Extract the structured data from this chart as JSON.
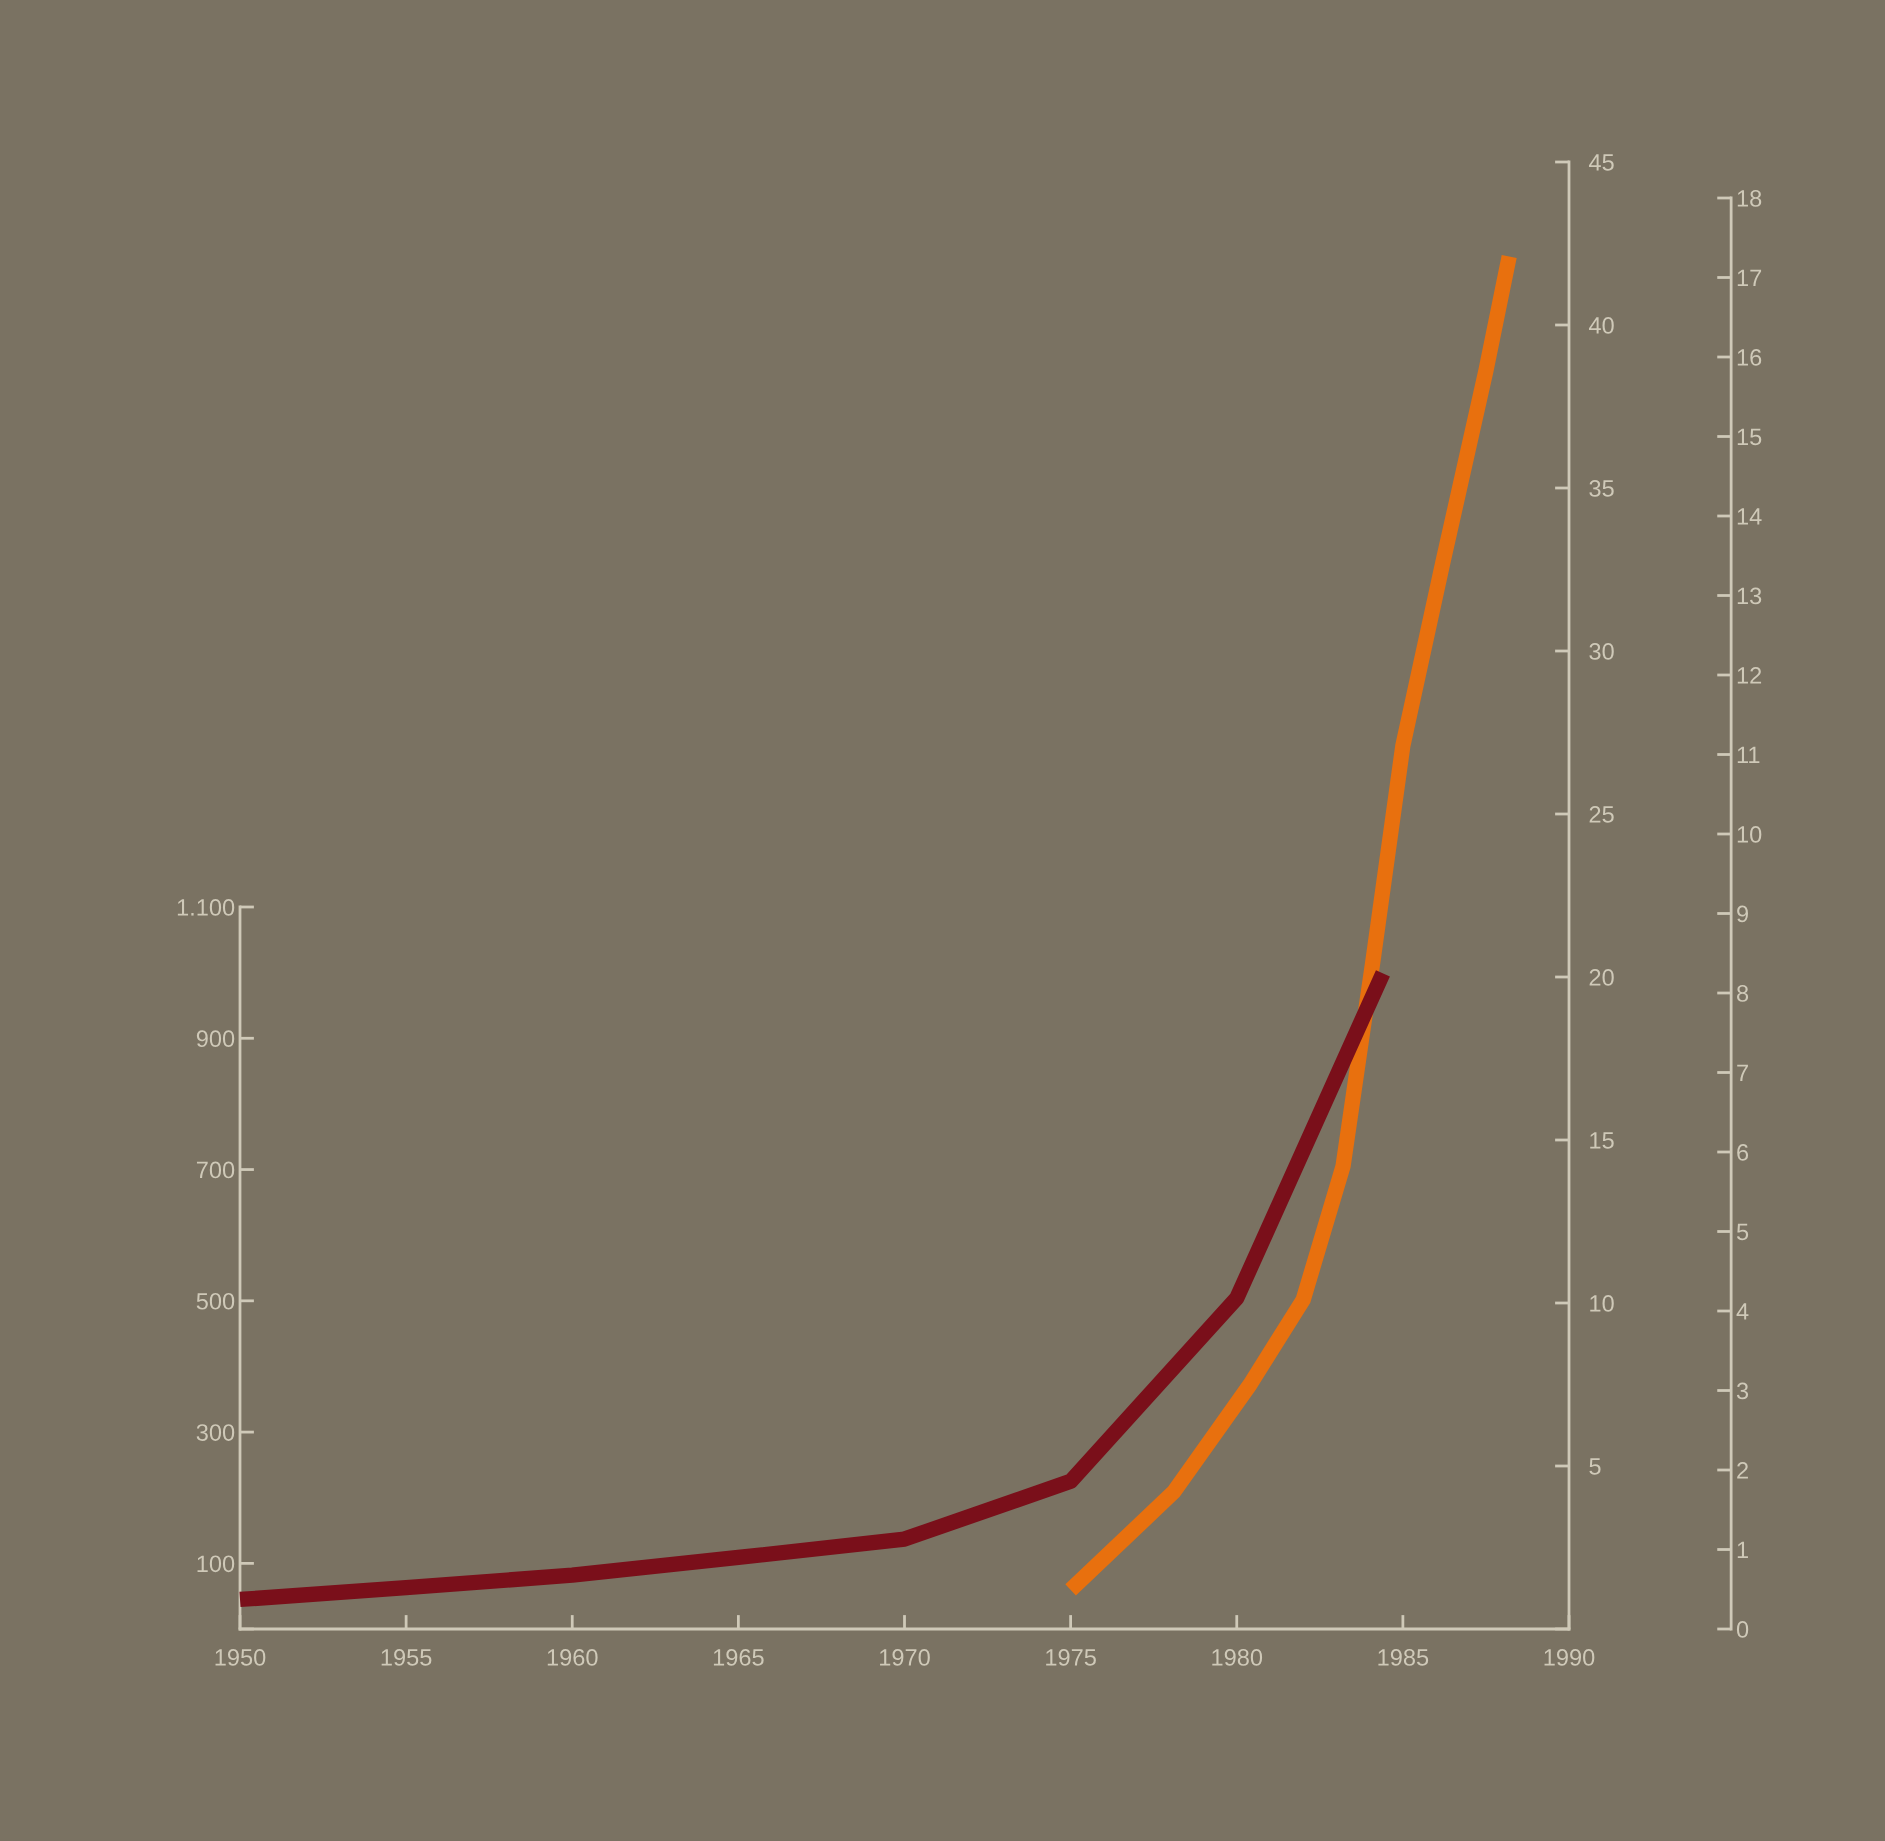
{
  "chart_data": {
    "type": "line",
    "x": [
      1950,
      1955,
      1960,
      1965,
      1970,
      1975,
      1980,
      1984.4
    ],
    "xlim": [
      1950,
      1990
    ],
    "xticks": [
      1950,
      1955,
      1960,
      1965,
      1970,
      1975,
      1980,
      1985,
      1990
    ],
    "ylim": [
      0,
      1100
    ],
    "yticks": [
      {
        "value": 0,
        "label": null
      },
      100,
      300,
      500,
      700,
      900,
      {
        "value": 1100,
        "label": "1.100"
      }
    ],
    "y2lim": [
      0,
      45
    ],
    "y2ticks": [
      {
        "value": 0,
        "label": null
      },
      5,
      10,
      15,
      20,
      25,
      30,
      35,
      40,
      45
    ],
    "y3lim": [
      0,
      18
    ],
    "y3ticks": [
      0,
      1,
      2,
      3,
      4,
      5,
      6,
      7,
      8,
      9,
      10,
      11,
      12,
      13,
      14,
      15,
      16,
      17,
      18
    ],
    "series": [
      {
        "color": "#7a0f1a",
        "values": [
          45,
          63,
          82,
          109,
          137,
          225,
          504,
          999
        ]
      },
      {
        "color": "#e8700e",
        "axis": "y2",
        "x": [
          1975,
          1978.1,
          1980.4,
          1982,
          1983.2,
          1984.1,
          1985,
          1986.2,
          1987.5,
          1988.2
        ],
        "values": [
          1.2,
          4.2,
          7.5,
          10.1,
          14.2,
          20.5,
          27.1,
          32.7,
          38.6,
          42.1
        ]
      }
    ],
    "grid": false,
    "marker": "none",
    "line_style": "solid"
  }
}
